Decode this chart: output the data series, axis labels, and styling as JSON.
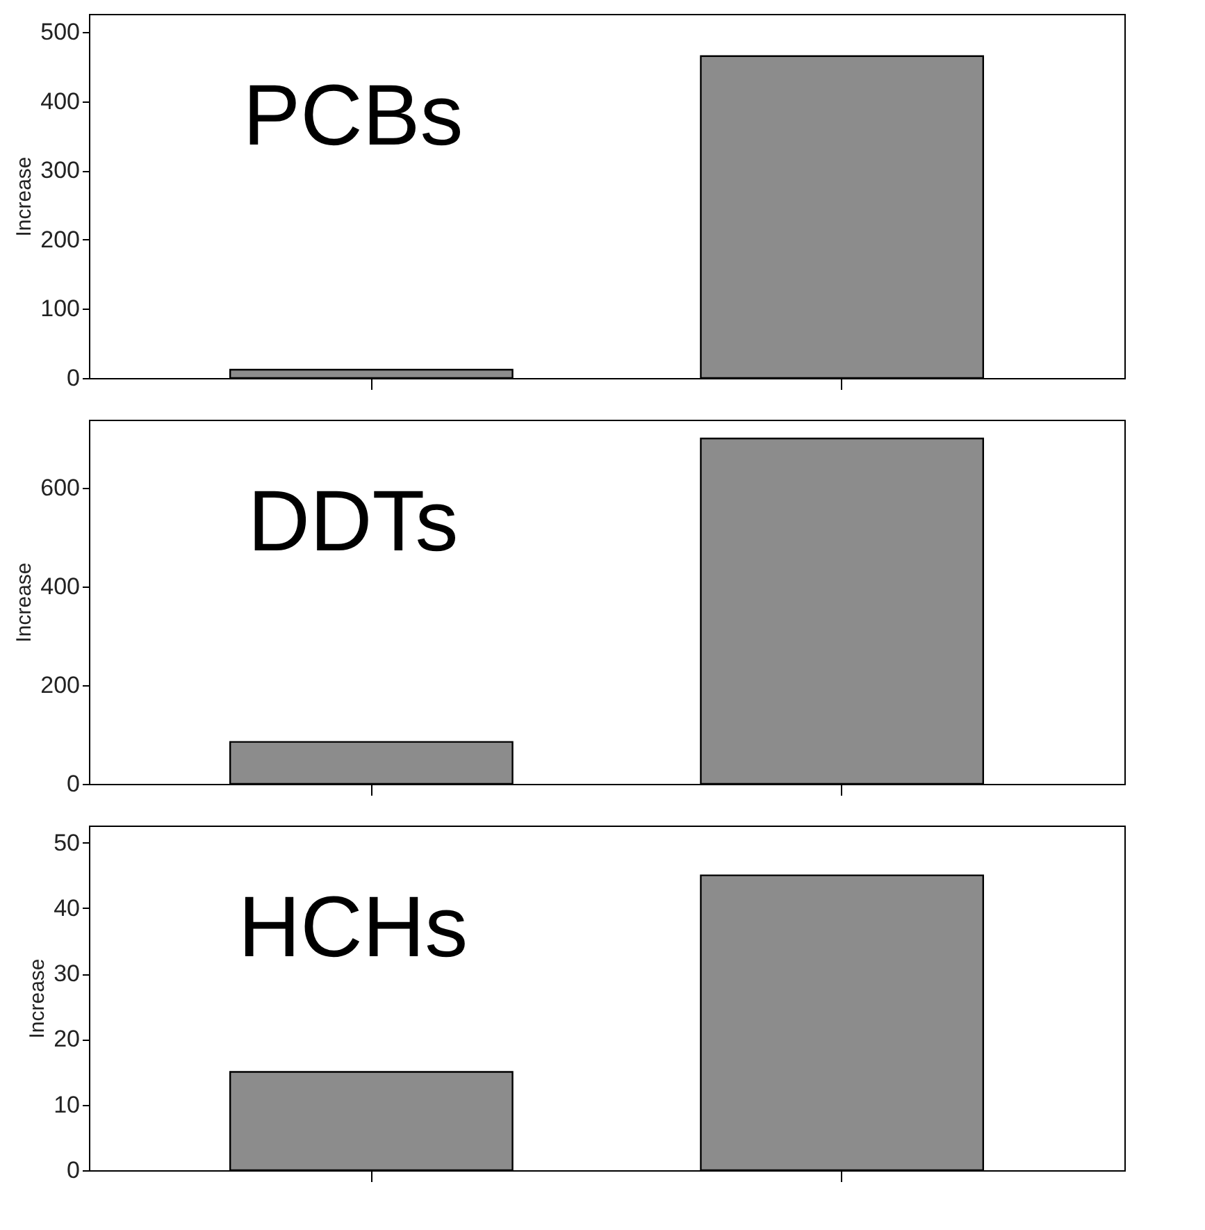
{
  "chart_data": [
    {
      "type": "bar",
      "annotations": [
        "PCBs"
      ],
      "ylabel": "Increase",
      "categories": [
        null,
        null
      ],
      "values": [
        12,
        465
      ],
      "color": "#8c8c8c",
      "ylim": [
        0,
        526
      ],
      "yticks": [
        0,
        100,
        200,
        300,
        400,
        500
      ],
      "grid": false
    },
    {
      "type": "bar",
      "annotations": [
        "DDTs"
      ],
      "ylabel": "Increase",
      "categories": [
        null,
        null
      ],
      "values": [
        85,
        700
      ],
      "color": "#8c8c8c",
      "ylim": [
        0,
        738
      ],
      "yticks": [
        0,
        200,
        400,
        600
      ],
      "grid": false
    },
    {
      "type": "bar",
      "annotations": [
        "HCHs"
      ],
      "ylabel": "Increase",
      "categories": [
        null,
        null
      ],
      "values": [
        15,
        45
      ],
      "color": "#8c8c8c",
      "ylim": [
        0,
        52.6
      ],
      "yticks": [
        0,
        10,
        20,
        30,
        40,
        50
      ],
      "grid": false
    }
  ]
}
